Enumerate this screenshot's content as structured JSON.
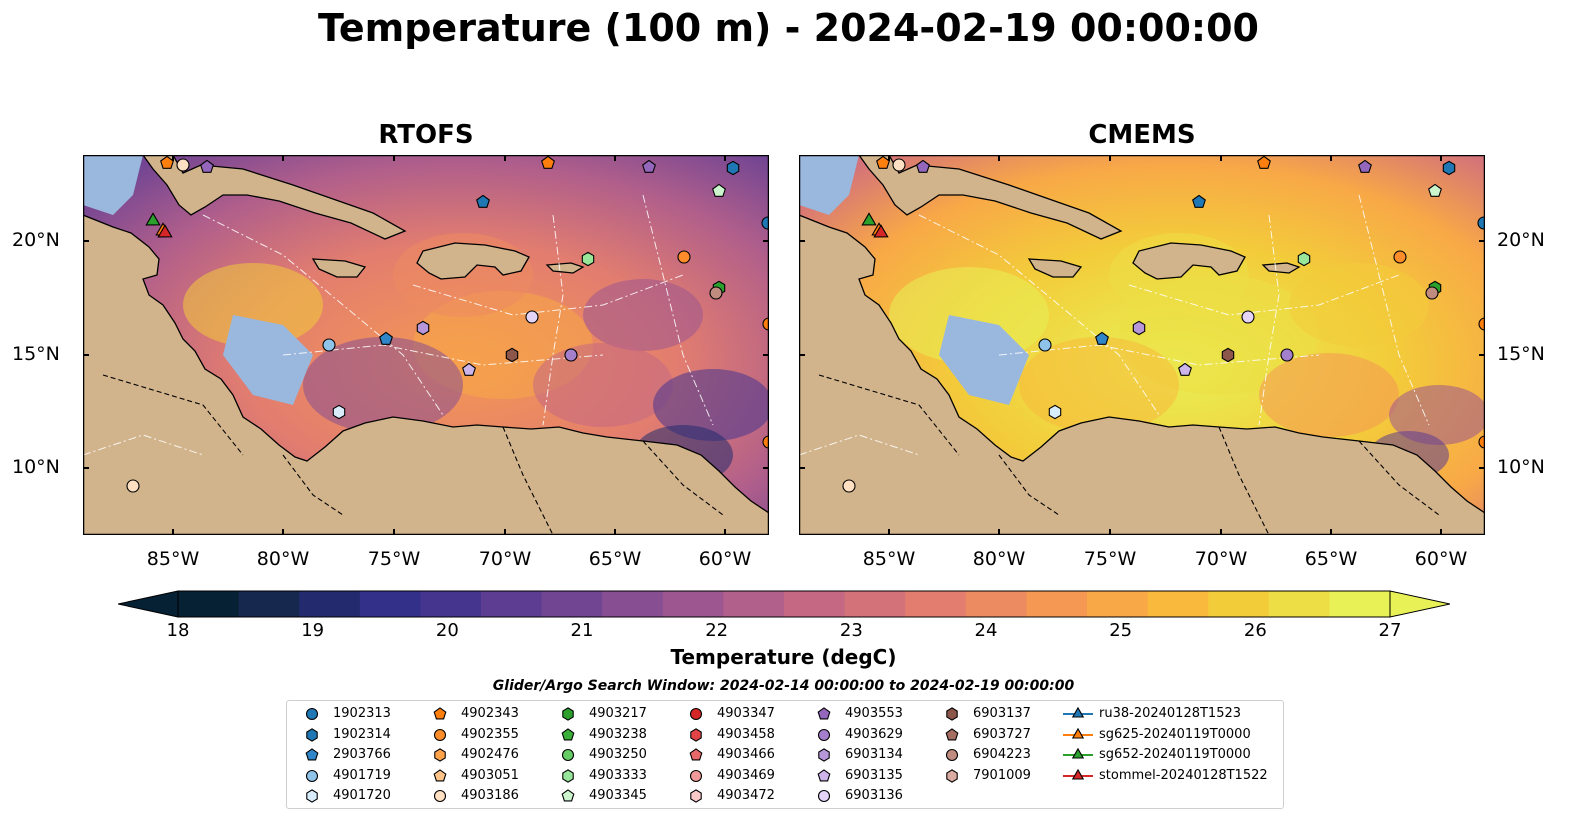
{
  "title": "Temperature (100 m) - 2024-02-19 00:00:00",
  "panels": [
    {
      "title": "RTOFS"
    },
    {
      "title": "CMEMS"
    }
  ],
  "axes": {
    "lat_ticks": [
      "20°N",
      "15°N",
      "10°N"
    ],
    "lon_ticks": [
      "85°W",
      "80°W",
      "75°W",
      "70°W",
      "65°W",
      "60°W"
    ]
  },
  "colorbar": {
    "label": "Temperature (degC)",
    "range": [
      18,
      27
    ],
    "ticks": [
      "18",
      "19",
      "20",
      "21",
      "22",
      "23",
      "24",
      "25",
      "26",
      "27"
    ],
    "colors": [
      "#062034",
      "#16284d",
      "#232b6e",
      "#33308a",
      "#46358f",
      "#5c3d92",
      "#724593",
      "#884e92",
      "#9d5690",
      "#b15f8b",
      "#c46883",
      "#d4727a",
      "#e27d6f",
      "#ec8a61",
      "#f49853",
      "#f8a847",
      "#f8b93d",
      "#f3cc3a",
      "#edde45",
      "#e8f155"
    ]
  },
  "legend": {
    "title": "Glider/Argo Search Window: 2024-02-14 00:00:00 to 2024-02-19 00:00:00",
    "columns": [
      [
        {
          "label": "1902313",
          "marker": "circle",
          "color": "#1f77b4"
        },
        {
          "label": "1902314",
          "marker": "hexagon",
          "color": "#1f77b4"
        },
        {
          "label": "2903766",
          "marker": "pentagon",
          "color": "#2e86c9"
        },
        {
          "label": "4901719",
          "marker": "circle",
          "color": "#8fc3ea"
        },
        {
          "label": "4901720",
          "marker": "hexagon",
          "color": "#d8ecfa"
        }
      ],
      [
        {
          "label": "4902343",
          "marker": "pentagon",
          "color": "#ff7f0e"
        },
        {
          "label": "4902355",
          "marker": "circle",
          "color": "#ff8c2a"
        },
        {
          "label": "4902476",
          "marker": "hexagon",
          "color": "#ffa24a"
        },
        {
          "label": "4903051",
          "marker": "pentagon",
          "color": "#ffc48a"
        },
        {
          "label": "4903186",
          "marker": "circle",
          "color": "#ffe0c2"
        }
      ],
      [
        {
          "label": "4903217",
          "marker": "hexagon",
          "color": "#2ca02c"
        },
        {
          "label": "4903238",
          "marker": "pentagon",
          "color": "#3aaf3a"
        },
        {
          "label": "4903250",
          "marker": "circle",
          "color": "#66cc66"
        },
        {
          "label": "4903333",
          "marker": "hexagon",
          "color": "#99e599"
        },
        {
          "label": "4903345",
          "marker": "pentagon",
          "color": "#cdf5cd"
        }
      ],
      [
        {
          "label": "4903347",
          "marker": "circle",
          "color": "#d62728"
        },
        {
          "label": "4903458",
          "marker": "hexagon",
          "color": "#e04446"
        },
        {
          "label": "4903466",
          "marker": "pentagon",
          "color": "#e8696a"
        },
        {
          "label": "4903469",
          "marker": "circle",
          "color": "#f29a9a"
        },
        {
          "label": "4903472",
          "marker": "hexagon",
          "color": "#fac8c8"
        }
      ],
      [
        {
          "label": "4903553",
          "marker": "pentagon",
          "color": "#9467bd"
        },
        {
          "label": "4903629",
          "marker": "circle",
          "color": "#a47fcc"
        },
        {
          "label": "6903134",
          "marker": "hexagon",
          "color": "#b796da"
        },
        {
          "label": "6903135",
          "marker": "pentagon",
          "color": "#cdb4ea"
        },
        {
          "label": "6903136",
          "marker": "circle",
          "color": "#e4d4f8"
        }
      ],
      [
        {
          "label": "6903137",
          "marker": "hexagon",
          "color": "#8c564b"
        },
        {
          "label": "6903727",
          "marker": "pentagon",
          "color": "#a66e62"
        },
        {
          "label": "6904223",
          "marker": "circle",
          "color": "#c08c80"
        },
        {
          "label": "7901009",
          "marker": "hexagon",
          "color": "#dbaaa0"
        }
      ],
      [
        {
          "label": "ru38-20240128T1523",
          "marker": "triangle",
          "color": "#1f77b4"
        },
        {
          "label": "sg625-20240119T0000",
          "marker": "triangle",
          "color": "#ff7f0e"
        },
        {
          "label": "sg652-20240119T0000",
          "marker": "triangle",
          "color": "#2ca02c"
        },
        {
          "label": "stommel-20240128T1522",
          "marker": "triangle",
          "color": "#d62728"
        }
      ]
    ]
  }
}
